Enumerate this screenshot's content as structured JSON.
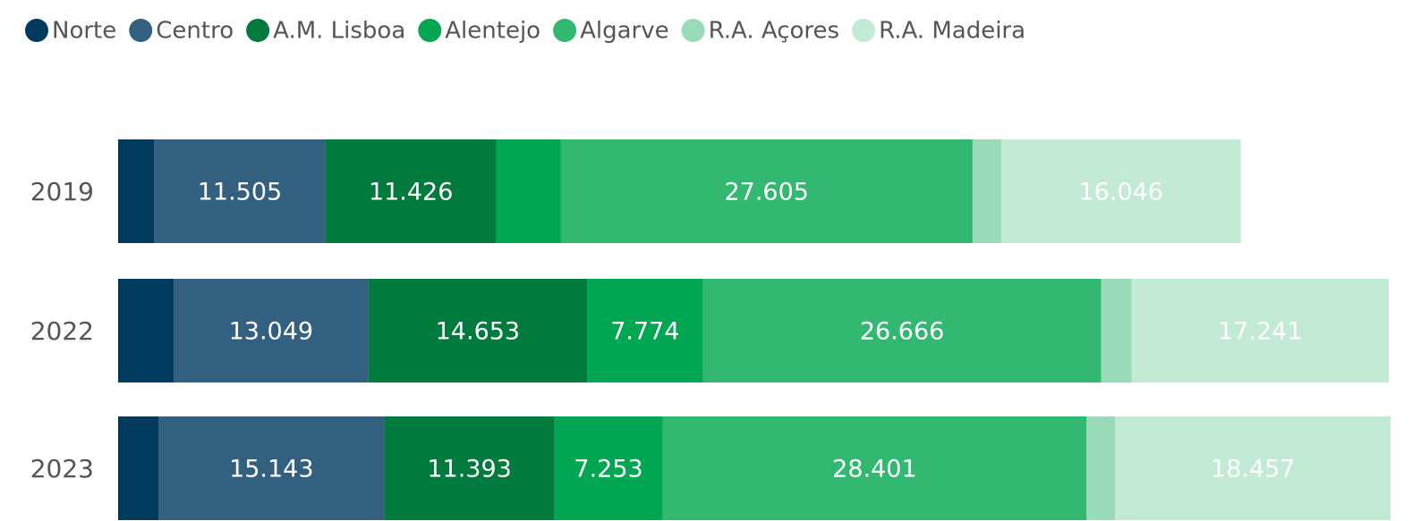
{
  "chart_data": {
    "type": "stacked-barh",
    "categories": [
      "2019",
      "2022",
      "2023"
    ],
    "xlim": [
      0,
      87300
    ],
    "legend": "top-left",
    "series": [
      {
        "name": "Norte",
        "color": "#003a5d",
        "values": [
          2400,
          3720,
          2700
        ],
        "value_labels": [
          null,
          null,
          null
        ]
      },
      {
        "name": "Centro",
        "color": "#33607f",
        "values": [
          11505,
          13049,
          15143
        ],
        "value_labels": [
          "11.505",
          "13.049",
          "15.143"
        ]
      },
      {
        "name": "A.M. Lisboa",
        "color": "#007a3d",
        "values": [
          11426,
          14653,
          11393
        ],
        "value_labels": [
          "11.426",
          "14.653",
          "11.393"
        ]
      },
      {
        "name": "Alentejo",
        "color": "#00a651",
        "values": [
          4320,
          7774,
          7253
        ],
        "value_labels": [
          null,
          "7.774",
          "7.253"
        ]
      },
      {
        "name": "Algarve",
        "color": "#33b872",
        "values": [
          27605,
          26666,
          28401
        ],
        "value_labels": [
          "27.605",
          "26.666",
          "28.401"
        ]
      },
      {
        "name": "R.A. Açores",
        "color": "#99dbb8",
        "values": [
          1920,
          2040,
          1920
        ],
        "value_labels": [
          null,
          null,
          null
        ]
      },
      {
        "name": "R.A. Madeira",
        "color": "#c2ead4",
        "values": [
          16046,
          17241,
          18457
        ],
        "value_labels": [
          "16.046",
          "17.241",
          "18.457"
        ]
      }
    ]
  }
}
